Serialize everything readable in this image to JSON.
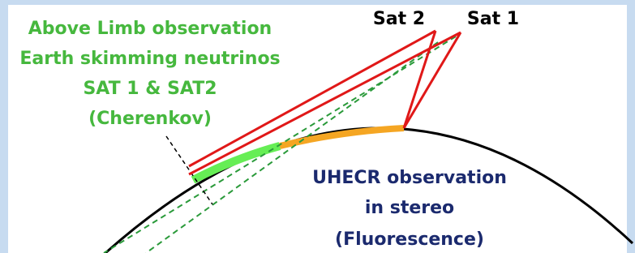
{
  "left_label": {
    "lines": [
      "Above Limb observation",
      "Earth skimming neutrinos",
      "SAT 1 & SAT2",
      "(Cherenkov)"
    ]
  },
  "satellites": [
    {
      "label": "Sat 2"
    },
    {
      "label": "Sat 1"
    }
  ],
  "bottom_label": {
    "lines": [
      "UHECR observation",
      "in stereo",
      "(Fluorescence)"
    ]
  }
}
